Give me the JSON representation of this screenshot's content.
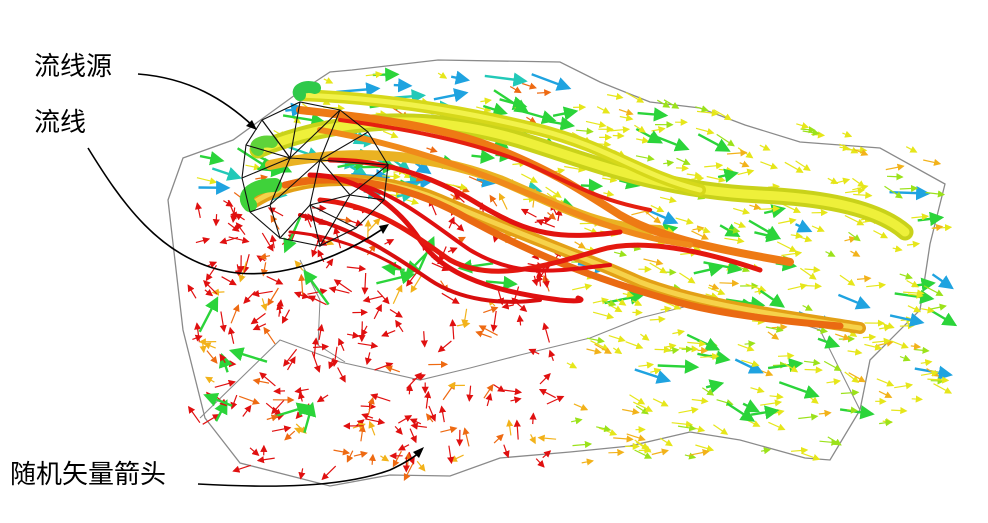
{
  "labels": {
    "streamline_source": "流线源",
    "streamline": "流线",
    "random_vector_arrows": "随机矢量箭头"
  },
  "colors": {
    "domain_outline": "#8a8a8a",
    "seed_cage": "#111111",
    "callout_line": "#000000",
    "colormap": [
      "#1f3fbf",
      "#1fa3e0",
      "#22c9b8",
      "#2bd43a",
      "#9be21a",
      "#e6e61a",
      "#f2b21a",
      "#ee6a12",
      "#e01010"
    ]
  },
  "icons": {
    "arrow_glyph": "vector-arrow-icon",
    "seed": "seed-cage-icon"
  }
}
